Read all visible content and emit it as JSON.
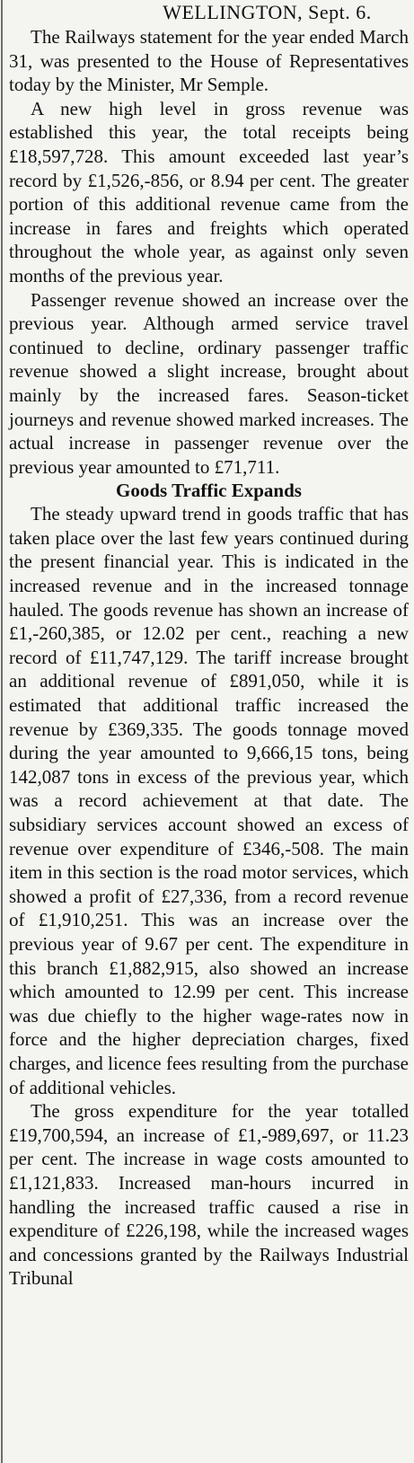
{
  "article": {
    "dateline": "WELLINGTON, Sept. 6.",
    "paragraphs": [
      "The Railways statement for the year ended March 31, was presented to the House of Representatives today by the Minister, Mr Semple.",
      "A new high level in gross revenue was established this year, the total receipts being £18,597,728. This amount exceeded last year’s record by £1,526,-856, or 8.94 per cent. The greater portion of this additional revenue came from the increase in fares and freights which operated throughout the whole year, as against only seven months of the previous year.",
      "Passenger revenue showed an increase over the previous year. Although armed service travel continued to decline, ordinary passenger traffic revenue showed a slight increase, brought about mainly by the increased fares. Season-ticket journeys and revenue showed marked increases. The actual increase in passenger revenue over the previous year amounted to £71,711."
    ],
    "subheading": "Goods Traffic Expands",
    "paragraphs_after": [
      "The steady upward trend in goods traffic that has taken place over the last few years continued during the present financial year. This is indicated in the increased revenue and in the increased tonnage hauled. The goods revenue has shown an increase of £1,-260,385, or 12.02 per cent., reaching a new record of £11,747,129. The tariff increase brought an additional revenue of £891,050, while it is estimated that additional traffic increased the revenue by £369,335. The goods tonnage moved during the year amounted to 9,666,15 tons, being 142,087 tons in excess of the previous year, which was a record achievement at that date. The subsidiary services account showed an excess of revenue over expenditure of £346,-508. The main item in this section is the road motor services, which showed a profit of £27,336, from a record revenue of £1,910,251. This was an increase over the previous year of 9.67 per cent. The expenditure in this branch £1,882,915, also showed an increase which amounted to 12.99 per cent. This increase was due chiefly to the higher wage-rates now in force and the higher depreciation charges, fixed charges, and licence fees resulting from the purchase of additional vehicles.",
      "The gross expenditure for the year totalled £19,700,594, an increase of £1,-989,697, or 11.23 per cent. The increase in wage costs amounted to £1,121,833. Increased man-hours incurred in handling the increased traffic caused a rise in expenditure of £226,198, while the increased wages and concessions granted by the Railways Industrial Tribunal"
    ]
  }
}
